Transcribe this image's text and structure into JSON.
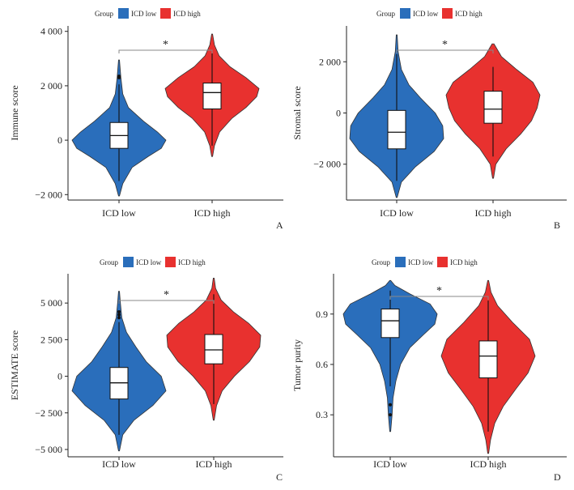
{
  "figure": {
    "legend_title": "Group",
    "groups": [
      "ICD low",
      "ICD high"
    ],
    "colors": {
      "ICD low": "#2A6EBB",
      "ICD high": "#E8312F"
    }
  },
  "chart_data": [
    {
      "type": "violin",
      "panel_label": "A",
      "title": "",
      "xlabel": "",
      "ylabel": "Immune score",
      "categories": [
        "ICD low",
        "ICD high"
      ],
      "ylim": [
        -2200,
        4200
      ],
      "yticks": [
        -2000,
        0,
        2000,
        4000
      ],
      "ytick_labels": [
        "−2 000",
        "0",
        "2 000",
        "4 000"
      ],
      "significance": "*",
      "series": [
        {
          "name": "ICD low",
          "range": [
            -2050,
            2950
          ],
          "box": {
            "q1": -300,
            "median": 170,
            "q3": 650,
            "whisker_low": -1500,
            "whisker_high": 2050
          },
          "outliers": [
            2300,
            2350
          ],
          "density": [
            [
              -2050,
              0.01
            ],
            [
              -1600,
              0.08
            ],
            [
              -1000,
              0.28
            ],
            [
              -600,
              0.62
            ],
            [
              -300,
              0.9
            ],
            [
              0,
              1.0
            ],
            [
              300,
              0.82
            ],
            [
              700,
              0.52
            ],
            [
              1200,
              0.2
            ],
            [
              1700,
              0.08
            ],
            [
              2300,
              0.04
            ],
            [
              2950,
              0.01
            ]
          ]
        },
        {
          "name": "ICD high",
          "range": [
            -600,
            3900
          ],
          "box": {
            "q1": 1150,
            "median": 1750,
            "q3": 2100,
            "whisker_low": -200,
            "whisker_high": 3200
          },
          "outliers": [],
          "density": [
            [
              -600,
              0.01
            ],
            [
              -200,
              0.05
            ],
            [
              300,
              0.16
            ],
            [
              800,
              0.42
            ],
            [
              1200,
              0.72
            ],
            [
              1600,
              0.95
            ],
            [
              1900,
              1.0
            ],
            [
              2300,
              0.72
            ],
            [
              2700,
              0.38
            ],
            [
              3100,
              0.15
            ],
            [
              3500,
              0.05
            ],
            [
              3900,
              0.01
            ]
          ]
        }
      ]
    },
    {
      "type": "violin",
      "panel_label": "B",
      "title": "",
      "xlabel": "",
      "ylabel": "Stromal score",
      "categories": [
        "ICD low",
        "ICD high"
      ],
      "ylim": [
        -3400,
        3400
      ],
      "yticks": [
        -2000,
        0,
        2000
      ],
      "ytick_labels": [
        "−2 000",
        "0",
        "2 000"
      ],
      "significance": "*",
      "series": [
        {
          "name": "ICD low",
          "range": [
            -3300,
            3050
          ],
          "box": {
            "q1": -1400,
            "median": -750,
            "q3": 100,
            "whisker_low": -2650,
            "whisker_high": 2300
          },
          "outliers": [],
          "density": [
            [
              -3300,
              0.01
            ],
            [
              -2700,
              0.1
            ],
            [
              -2100,
              0.4
            ],
            [
              -1500,
              0.8
            ],
            [
              -1000,
              1.0
            ],
            [
              -500,
              0.98
            ],
            [
              0,
              0.82
            ],
            [
              600,
              0.5
            ],
            [
              1100,
              0.26
            ],
            [
              1700,
              0.1
            ],
            [
              2400,
              0.03
            ],
            [
              3050,
              0.01
            ]
          ]
        },
        {
          "name": "ICD high",
          "range": [
            -2550,
            2700
          ],
          "box": {
            "q1": -400,
            "median": 150,
            "q3": 850,
            "whisker_low": -1700,
            "whisker_high": 1800
          },
          "outliers": [],
          "density": [
            [
              -2550,
              0.01
            ],
            [
              -2000,
              0.06
            ],
            [
              -1400,
              0.28
            ],
            [
              -800,
              0.6
            ],
            [
              -300,
              0.82
            ],
            [
              200,
              0.94
            ],
            [
              700,
              1.0
            ],
            [
              1200,
              0.85
            ],
            [
              1700,
              0.5
            ],
            [
              2200,
              0.18
            ],
            [
              2700,
              0.02
            ]
          ]
        }
      ]
    },
    {
      "type": "violin",
      "panel_label": "C",
      "title": "",
      "xlabel": "",
      "ylabel": "ESTIMATE score",
      "categories": [
        "ICD low",
        "ICD high"
      ],
      "ylim": [
        -5500,
        7000
      ],
      "yticks": [
        -5000,
        -2500,
        0,
        2500,
        5000
      ],
      "ytick_labels": [
        "−5 000",
        "−2 500",
        "0",
        "2 500",
        "5 000"
      ],
      "significance": "*",
      "series": [
        {
          "name": "ICD low",
          "range": [
            -5100,
            5800
          ],
          "box": {
            "q1": -1550,
            "median": -450,
            "q3": 600,
            "whisker_low": -4000,
            "whisker_high": 3700
          },
          "outliers": [
            4000,
            4200,
            4400
          ],
          "density": [
            [
              -5100,
              0.01
            ],
            [
              -4000,
              0.08
            ],
            [
              -3000,
              0.32
            ],
            [
              -2000,
              0.72
            ],
            [
              -1000,
              1.0
            ],
            [
              0,
              0.9
            ],
            [
              1000,
              0.58
            ],
            [
              2000,
              0.36
            ],
            [
              3000,
              0.16
            ],
            [
              4000,
              0.06
            ],
            [
              5000,
              0.03
            ],
            [
              5800,
              0.01
            ]
          ]
        },
        {
          "name": "ICD high",
          "range": [
            -3000,
            6700
          ],
          "box": {
            "q1": 850,
            "median": 1800,
            "q3": 2850,
            "whisker_low": -1900,
            "whisker_high": 5600
          },
          "outliers": [],
          "density": [
            [
              -3000,
              0.01
            ],
            [
              -2000,
              0.06
            ],
            [
              -1000,
              0.18
            ],
            [
              0,
              0.44
            ],
            [
              1000,
              0.76
            ],
            [
              2000,
              0.98
            ],
            [
              2800,
              1.0
            ],
            [
              3600,
              0.75
            ],
            [
              4400,
              0.42
            ],
            [
              5200,
              0.16
            ],
            [
              6000,
              0.04
            ],
            [
              6700,
              0.01
            ]
          ]
        }
      ]
    },
    {
      "type": "violin",
      "panel_label": "D",
      "title": "",
      "xlabel": "",
      "ylabel": "Tumor purity",
      "categories": [
        "ICD low",
        "ICD high"
      ],
      "ylim": [
        0.05,
        1.14
      ],
      "yticks": [
        0.3,
        0.6,
        0.9
      ],
      "ytick_labels": [
        "0.3",
        "0.6",
        "0.9"
      ],
      "significance": "*",
      "series": [
        {
          "name": "ICD low",
          "range": [
            0.2,
            1.1
          ],
          "box": {
            "q1": 0.76,
            "median": 0.86,
            "q3": 0.93,
            "whisker_low": 0.47,
            "whisker_high": 1.04
          },
          "outliers": [
            0.3,
            0.36
          ],
          "density": [
            [
              0.2,
              0.01
            ],
            [
              0.3,
              0.04
            ],
            [
              0.4,
              0.06
            ],
            [
              0.5,
              0.12
            ],
            [
              0.6,
              0.22
            ],
            [
              0.7,
              0.42
            ],
            [
              0.78,
              0.72
            ],
            [
              0.84,
              0.95
            ],
            [
              0.9,
              1.0
            ],
            [
              0.96,
              0.85
            ],
            [
              1.02,
              0.42
            ],
            [
              1.07,
              0.1
            ],
            [
              1.1,
              0.01
            ]
          ]
        },
        {
          "name": "ICD high",
          "range": [
            0.07,
            1.1
          ],
          "box": {
            "q1": 0.52,
            "median": 0.65,
            "q3": 0.74,
            "whisker_low": 0.2,
            "whisker_high": 0.98
          },
          "outliers": [],
          "density": [
            [
              0.07,
              0.01
            ],
            [
              0.15,
              0.05
            ],
            [
              0.25,
              0.14
            ],
            [
              0.35,
              0.32
            ],
            [
              0.45,
              0.58
            ],
            [
              0.55,
              0.85
            ],
            [
              0.65,
              1.0
            ],
            [
              0.75,
              0.88
            ],
            [
              0.85,
              0.52
            ],
            [
              0.95,
              0.2
            ],
            [
              1.03,
              0.06
            ],
            [
              1.1,
              0.01
            ]
          ]
        }
      ]
    }
  ]
}
